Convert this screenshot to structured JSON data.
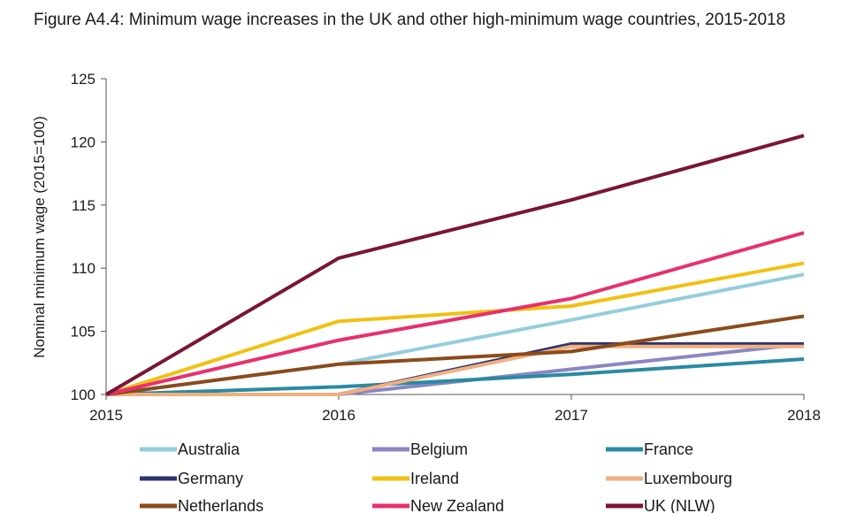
{
  "chart_data": {
    "type": "line",
    "title": "Figure A4.4: Minimum wage increases in the UK and other high-minimum wage countries, 2015-2018",
    "ylabel": "Nominal minimum wage (2015=100)",
    "xlabel": "",
    "x": [
      2015,
      2016,
      2017,
      2018
    ],
    "ylim": [
      100,
      125
    ],
    "yticks": [
      100,
      105,
      110,
      115,
      120,
      125
    ],
    "grid": false,
    "legend_position": "bottom",
    "series": [
      {
        "name": "Australia",
        "color": "#93cddd",
        "values": [
          100,
          102.4,
          105.9,
          109.5
        ]
      },
      {
        "name": "Belgium",
        "color": "#8a86c4",
        "values": [
          100,
          100.0,
          102.0,
          104.0
        ]
      },
      {
        "name": "France",
        "color": "#2a8aa3",
        "values": [
          100,
          100.6,
          101.6,
          102.8
        ]
      },
      {
        "name": "Germany",
        "color": "#2e3470",
        "values": [
          100,
          100.0,
          104.0,
          104.0
        ]
      },
      {
        "name": "Ireland",
        "color": "#f2c011",
        "values": [
          100,
          105.8,
          107.0,
          110.4
        ]
      },
      {
        "name": "Luxembourg",
        "color": "#f0b07e",
        "values": [
          100,
          100.0,
          103.8,
          103.8
        ]
      },
      {
        "name": "Netherlands",
        "color": "#8b4b1c",
        "values": [
          100,
          102.4,
          103.4,
          106.2
        ]
      },
      {
        "name": "New Zealand",
        "color": "#e8306e",
        "values": [
          100,
          104.3,
          107.6,
          112.8
        ]
      },
      {
        "name": "UK (NLW)",
        "color": "#7a1535",
        "values": [
          100,
          110.8,
          115.4,
          120.5
        ]
      }
    ]
  }
}
